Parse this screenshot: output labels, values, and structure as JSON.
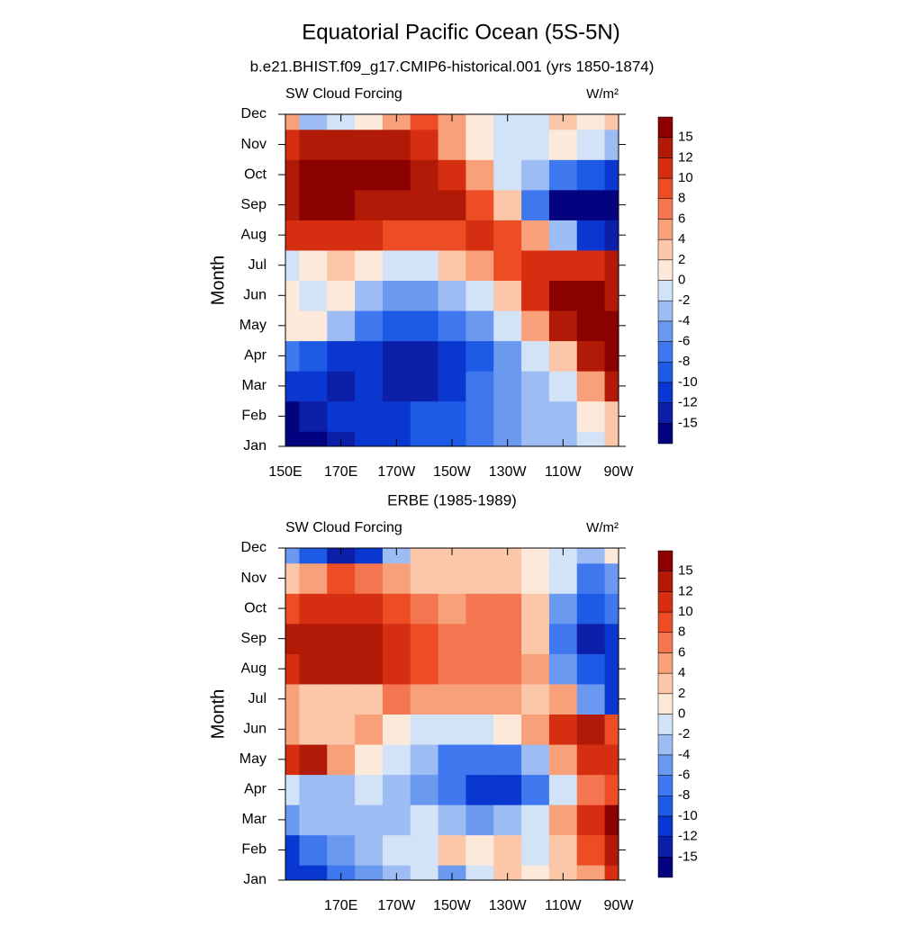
{
  "chart_data": [
    {
      "type": "contour",
      "title": "Equatorial Pacific Ocean (5S-5N)",
      "subtitle": "b.e21.BHIST.f09_g17.CMIP6-historical.001 (yrs 1850-1874)",
      "left_label": "SW Cloud Forcing",
      "right_label": "W/m²",
      "ylabel": "Month",
      "x": [
        150,
        160,
        170,
        180,
        190,
        200,
        210,
        220,
        230,
        240,
        250,
        260,
        270
      ],
      "y": [
        "Jan",
        "Feb",
        "Mar",
        "Apr",
        "May",
        "Jun",
        "Jul",
        "Aug",
        "Sep",
        "Oct",
        "Nov",
        "Dec"
      ],
      "xlim": [
        150,
        270
      ],
      "xticks": [
        {
          "value": 150,
          "label": "150E"
        },
        {
          "value": 170,
          "label": "170E"
        },
        {
          "value": 190,
          "label": "170W"
        },
        {
          "value": 210,
          "label": "150W"
        },
        {
          "value": 230,
          "label": "130W"
        },
        {
          "value": 250,
          "label": "110W"
        },
        {
          "value": 270,
          "label": "90W"
        }
      ],
      "levels": [
        -15,
        -12,
        -10,
        -8,
        -6,
        -4,
        -2,
        0,
        2,
        4,
        6,
        8,
        10,
        12,
        15
      ],
      "colors": [
        "#03037f",
        "#0c1fa8",
        "#0a37cf",
        "#1d5ae6",
        "#3e77ee",
        "#6b99f0",
        "#9dbcf3",
        "#d2e3f8",
        "#fde9da",
        "#fbc7a8",
        "#f7a07a",
        "#f47650",
        "#ec4d25",
        "#d52e10",
        "#b11a06",
        "#8b0000"
      ],
      "values": [
        [
          -16,
          -16,
          -14,
          -12,
          -11,
          -10,
          -9,
          -7,
          -5,
          -4,
          -3,
          -1,
          2
        ],
        [
          -16,
          -14,
          -12,
          -11,
          -11,
          -10,
          -9,
          -7,
          -5,
          -4,
          -3,
          0,
          3
        ],
        [
          -12,
          -12,
          -13,
          -12,
          -13,
          -13,
          -11,
          -8,
          -5,
          -4,
          -1,
          4,
          12
        ],
        [
          -8,
          -10,
          -12,
          -12,
          -13,
          -13,
          -12,
          -9,
          -5,
          -2,
          3,
          12,
          16
        ],
        [
          1,
          0,
          -4,
          -8,
          -10,
          -10,
          -8,
          -5,
          -2,
          5,
          12,
          16,
          16
        ],
        [
          1,
          -1,
          0,
          -3,
          -5,
          -6,
          -4,
          -1,
          3,
          10,
          15,
          16,
          13
        ],
        [
          -1,
          1,
          2,
          1,
          -1,
          -1,
          2,
          5,
          8,
          10,
          10,
          10,
          12
        ],
        [
          11,
          10,
          10,
          10,
          9,
          9,
          9,
          10,
          8,
          4,
          -4,
          -12,
          -14
        ],
        [
          14,
          16,
          16,
          14,
          14,
          12,
          12,
          8,
          2,
          -8,
          -16,
          -16,
          -16
        ],
        [
          14,
          16,
          16,
          16,
          16,
          13,
          10,
          4,
          -2,
          -4,
          -8,
          -10,
          -12
        ],
        [
          10,
          12,
          12,
          12,
          12,
          10,
          5,
          1,
          -1,
          -1,
          1,
          -1,
          -4
        ],
        [
          4,
          -4,
          -2,
          0,
          4,
          8,
          4,
          0,
          -1,
          -1,
          2,
          0,
          2
        ]
      ]
    },
    {
      "type": "contour",
      "subtitle": "ERBE (1985-1989)",
      "left_label": "SW Cloud Forcing",
      "right_label": "W/m²",
      "ylabel": "Month",
      "x": [
        150,
        160,
        170,
        180,
        190,
        200,
        210,
        220,
        230,
        240,
        250,
        260,
        270
      ],
      "y": [
        "Jan",
        "Feb",
        "Mar",
        "Apr",
        "May",
        "Jun",
        "Jul",
        "Aug",
        "Sep",
        "Oct",
        "Nov",
        "Dec"
      ],
      "xlim": [
        150,
        270
      ],
      "xticks": [
        {
          "value": 170,
          "label": "170E"
        },
        {
          "value": 190,
          "label": "170W"
        },
        {
          "value": 210,
          "label": "150W"
        },
        {
          "value": 230,
          "label": "130W"
        },
        {
          "value": 250,
          "label": "110W"
        },
        {
          "value": 270,
          "label": "90W"
        }
      ],
      "levels": [
        -15,
        -12,
        -10,
        -8,
        -6,
        -4,
        -2,
        0,
        2,
        4,
        6,
        8,
        10,
        12,
        15
      ],
      "colors": [
        "#03037f",
        "#0c1fa8",
        "#0a37cf",
        "#1d5ae6",
        "#3e77ee",
        "#6b99f0",
        "#9dbcf3",
        "#d2e3f8",
        "#fde9da",
        "#fbc7a8",
        "#f7a07a",
        "#f47650",
        "#ec4d25",
        "#d52e10",
        "#b11a06",
        "#8b0000"
      ],
      "values": [
        [
          -12,
          -12,
          -8,
          -6,
          -4,
          -2,
          -6,
          -2,
          2,
          0,
          2,
          4,
          10
        ],
        [
          -12,
          -8,
          -5,
          -4,
          -2,
          -2,
          3,
          0,
          2,
          -2,
          3,
          8,
          14
        ],
        [
          -6,
          -4,
          -3,
          -4,
          -3,
          -2,
          -4,
          -6,
          -4,
          -2,
          4,
          10,
          16
        ],
        [
          -2,
          -4,
          -3,
          -1,
          -4,
          -6,
          -8,
          -12,
          -12,
          -8,
          -2,
          6,
          8
        ],
        [
          10,
          12,
          4,
          0,
          -2,
          -4,
          -8,
          -8,
          -8,
          -4,
          4,
          10,
          10
        ],
        [
          4,
          3,
          2,
          4,
          1,
          -2,
          -2,
          -2,
          1,
          4,
          10,
          12,
          8
        ],
        [
          4,
          2,
          3,
          3,
          6,
          5,
          4,
          4,
          4,
          3,
          4,
          -6,
          -12
        ],
        [
          10,
          12,
          14,
          12,
          10,
          8,
          7,
          6,
          6,
          4,
          -6,
          -10,
          -12
        ],
        [
          12,
          14,
          12,
          12,
          10,
          9,
          6,
          7,
          6,
          2,
          -8,
          -14,
          -12
        ],
        [
          8,
          10,
          10,
          10,
          8,
          6,
          4,
          6,
          6,
          2,
          -6,
          -10,
          -8
        ],
        [
          3,
          4,
          8,
          6,
          4,
          2,
          2,
          2,
          2,
          0,
          -2,
          -8,
          -6
        ],
        [
          -6,
          -10,
          -14,
          -12,
          -4,
          2,
          3,
          3,
          2,
          1,
          -2,
          -4,
          0
        ]
      ]
    }
  ]
}
